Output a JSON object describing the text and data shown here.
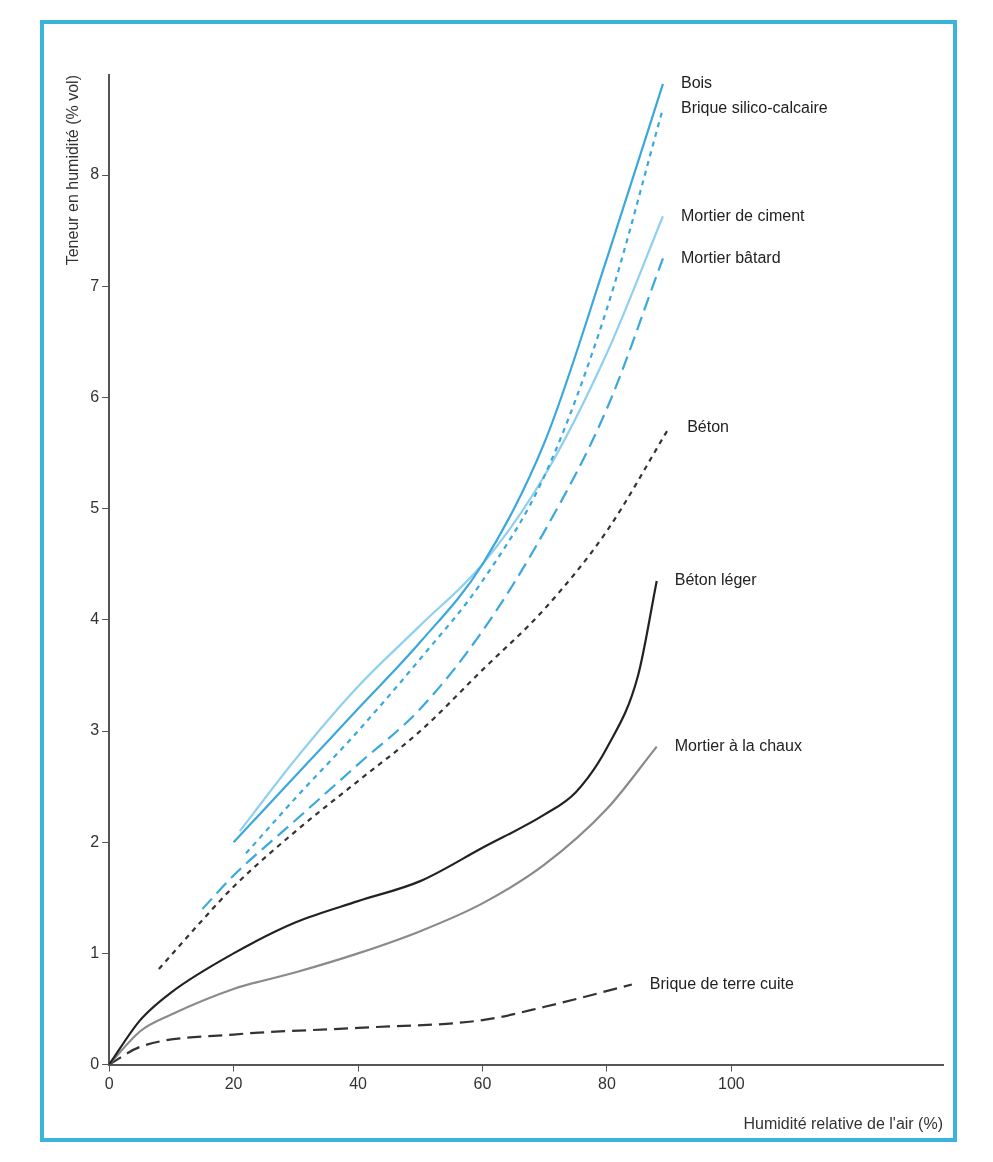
{
  "chart_data": {
    "type": "line",
    "xlabel": "Humidité relative de l'air (%)",
    "ylabel": "Teneur en humidité (% vol)",
    "xlim": [
      0,
      134
    ],
    "xticks": [
      0,
      20,
      40,
      60,
      80,
      100
    ],
    "ylim": [
      0,
      8.9
    ],
    "yticks": [
      0,
      1,
      2,
      3,
      4,
      5,
      6,
      7,
      8
    ],
    "grid": false,
    "legend": false,
    "marker": "none",
    "series": [
      {
        "name": "Bois",
        "color": "#3aa8dc",
        "line_style": "solid",
        "x": [
          20,
          30,
          40,
          50,
          60,
          70,
          80,
          89
        ],
        "values": [
          2.0,
          2.6,
          3.2,
          3.8,
          4.5,
          5.6,
          7.25,
          8.82
        ]
      },
      {
        "name": "Brique silico-calcaire",
        "color": "#3aa8dc",
        "line_style": "dotted",
        "x": [
          22,
          30,
          40,
          50,
          60,
          70,
          80,
          89
        ],
        "values": [
          1.9,
          2.4,
          3.0,
          3.65,
          4.35,
          5.3,
          6.8,
          8.6
        ]
      },
      {
        "name": "Mortier de ciment",
        "color": "#8fd0ee",
        "line_style": "solid",
        "x": [
          21,
          30,
          40,
          50,
          60,
          70,
          80,
          89
        ],
        "values": [
          2.1,
          2.75,
          3.4,
          3.95,
          4.5,
          5.3,
          6.4,
          7.63
        ]
      },
      {
        "name": "Mortier bâtard",
        "color": "#3aa8dc",
        "line_style": "dashed",
        "x": [
          15,
          20,
          30,
          40,
          50,
          60,
          70,
          80,
          89
        ],
        "values": [
          1.4,
          1.7,
          2.2,
          2.7,
          3.2,
          3.9,
          4.8,
          5.9,
          7.25
        ]
      },
      {
        "name": "Béton",
        "color": "#333333",
        "line_style": "dotted",
        "x": [
          8,
          15,
          20,
          30,
          40,
          50,
          60,
          70,
          80,
          90
        ],
        "values": [
          0.86,
          1.3,
          1.6,
          2.1,
          2.55,
          3.0,
          3.55,
          4.1,
          4.8,
          5.73
        ]
      },
      {
        "name": "Béton léger",
        "color": "#222222",
        "line_style": "solid",
        "x": [
          0,
          5,
          10,
          20,
          30,
          40,
          50,
          60,
          70,
          75,
          80,
          85,
          88
        ],
        "values": [
          0,
          0.4,
          0.65,
          1.0,
          1.28,
          1.47,
          1.65,
          1.95,
          2.25,
          2.45,
          2.85,
          3.5,
          4.35
        ]
      },
      {
        "name": "Mortier à la chaux",
        "color": "#8a8a8a",
        "line_style": "solid",
        "x": [
          0,
          5,
          10,
          20,
          30,
          40,
          50,
          60,
          70,
          80,
          88
        ],
        "values": [
          0,
          0.3,
          0.45,
          0.68,
          0.83,
          1.0,
          1.2,
          1.45,
          1.8,
          2.3,
          2.86
        ]
      },
      {
        "name": "Brique de terre cuite",
        "color": "#333333",
        "line_style": "dashed",
        "x": [
          0,
          5,
          20,
          40,
          60,
          70,
          84
        ],
        "values": [
          0,
          0.16,
          0.27,
          0.33,
          0.4,
          0.52,
          0.72
        ]
      }
    ]
  }
}
